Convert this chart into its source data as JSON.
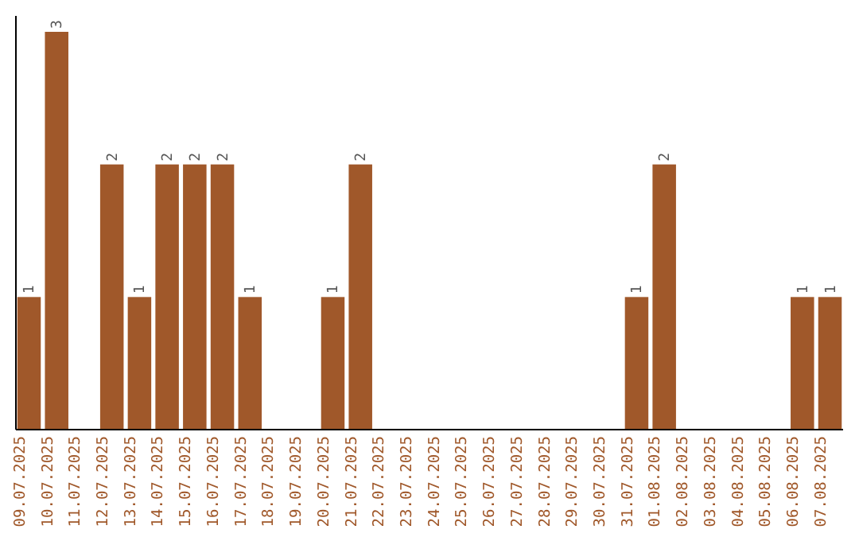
{
  "chart_data": {
    "type": "bar",
    "categories": [
      "09.07.2025",
      "10.07.2025",
      "11.07.2025",
      "12.07.2025",
      "13.07.2025",
      "14.07.2025",
      "15.07.2025",
      "16.07.2025",
      "17.07.2025",
      "18.07.2025",
      "19.07.2025",
      "20.07.2025",
      "21.07.2025",
      "22.07.2025",
      "23.07.2025",
      "24.07.2025",
      "25.07.2025",
      "26.07.2025",
      "27.07.2025",
      "28.07.2025",
      "29.07.2025",
      "30.07.2025",
      "31.07.2025",
      "01.08.2025",
      "02.08.2025",
      "03.08.2025",
      "04.08.2025",
      "05.08.2025",
      "06.08.2025",
      "07.08.2025"
    ],
    "values": [
      1,
      3,
      0,
      2,
      1,
      2,
      2,
      2,
      1,
      0,
      0,
      1,
      2,
      0,
      0,
      0,
      0,
      0,
      0,
      0,
      0,
      0,
      1,
      2,
      0,
      0,
      0,
      0,
      1,
      1
    ],
    "value_labels": [
      "1",
      "3",
      null,
      "2",
      "1",
      "2",
      "2",
      "2",
      "1",
      null,
      null,
      "1",
      "2",
      null,
      null,
      null,
      null,
      null,
      null,
      null,
      null,
      null,
      "1",
      "2",
      null,
      null,
      null,
      null,
      "1",
      "1"
    ],
    "color": "#a0582a"
  }
}
